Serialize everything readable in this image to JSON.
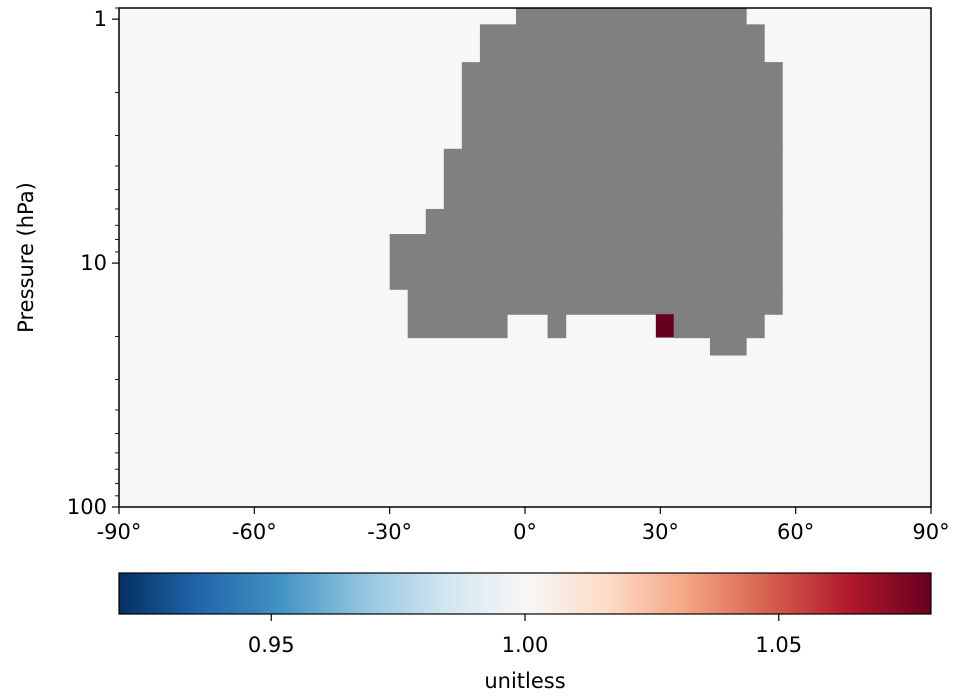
{
  "chart_data": {
    "type": "heatmap",
    "xlabel": "",
    "ylabel": "Pressure (hPa)",
    "x_axis": {
      "range": [
        -90,
        90
      ],
      "ticks": [
        -90,
        -60,
        -30,
        0,
        30,
        60,
        90
      ],
      "tick_labels": [
        "-90°",
        "-60°",
        "-30°",
        "0°",
        "30°",
        "60°",
        "90°"
      ]
    },
    "y_axis": {
      "scale": "log",
      "inverted": true,
      "range": [
        100,
        0.9
      ],
      "ticks": [
        1,
        10,
        100
      ],
      "tick_labels": [
        "1",
        "10",
        "100"
      ]
    },
    "background_value": 1.0,
    "missing_data_color": "#808080",
    "missing_data_region": [
      {
        "lat": [
          -2,
          49
        ],
        "p": [
          0.9,
          1.05
        ]
      },
      {
        "lat": [
          -10,
          53
        ],
        "p": [
          1.05,
          1.5
        ]
      },
      {
        "lat": [
          -14,
          57
        ],
        "p": [
          1.5,
          3.4
        ]
      },
      {
        "lat": [
          -18,
          57
        ],
        "p": [
          3.4,
          6.0
        ]
      },
      {
        "lat": [
          -22,
          57
        ],
        "p": [
          6.0,
          7.6
        ]
      },
      {
        "lat": [
          -30,
          57
        ],
        "p": [
          7.6,
          12.8
        ]
      },
      {
        "lat": [
          -26,
          57
        ],
        "p": [
          12.8,
          16.2
        ]
      },
      {
        "lat": [
          -26,
          -4
        ],
        "p": [
          16.2,
          20.2
        ]
      },
      {
        "lat": [
          5,
          9
        ],
        "p": [
          16.2,
          20.2
        ]
      },
      {
        "lat": [
          33,
          53
        ],
        "p": [
          16.2,
          20.2
        ]
      },
      {
        "lat": [
          41,
          49
        ],
        "p": [
          20.2,
          23.8
        ]
      }
    ],
    "highlight_cells": [
      {
        "lat": [
          29,
          33
        ],
        "p": [
          16.2,
          20.2
        ],
        "value": 1.08
      }
    ],
    "colorbar": {
      "label": "unitless",
      "colormap": "RdBu_r",
      "vmin": 0.92,
      "vmax": 1.08,
      "ticks": [
        0.95,
        1.0,
        1.05
      ],
      "tick_labels": [
        "0.95",
        "1.00",
        "1.05"
      ],
      "color_stops": [
        "#053061",
        "#2166ac",
        "#4393c3",
        "#92c5de",
        "#d1e5f0",
        "#f7f7f7",
        "#fddbc7",
        "#f4a582",
        "#d6604d",
        "#b2182b",
        "#67001f"
      ]
    }
  }
}
